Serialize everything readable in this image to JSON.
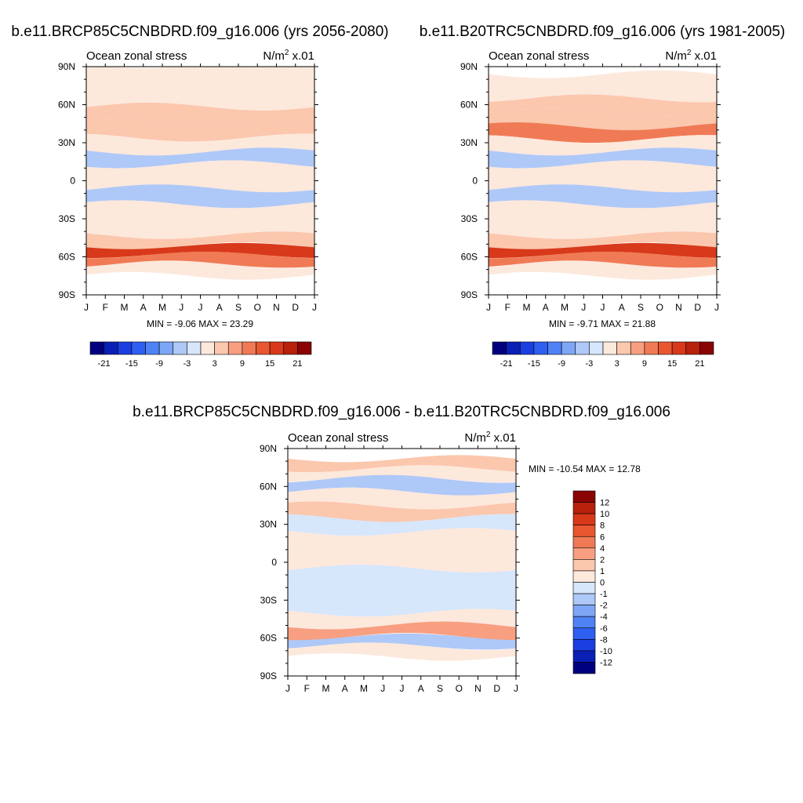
{
  "chart_data": [
    {
      "type": "heatmap",
      "title": "b.e11.BRCP85C5CNBDRD.f09_g16.006 (yrs 2056-2080)",
      "left_label": "Ocean zonal stress",
      "right_label_base": "N/m",
      "right_label_sup": "2",
      "right_label_scale": " x.01",
      "stats": "MIN =  -9.06 MAX =  23.29",
      "x_ticks": [
        "J",
        "F",
        "M",
        "A",
        "M",
        "J",
        "J",
        "A",
        "S",
        "O",
        "N",
        "D",
        "J"
      ],
      "y_ticks": [
        "90N",
        "60N",
        "30N",
        "0",
        "30S",
        "60S",
        "90S"
      ],
      "ylim": [
        -90,
        90
      ],
      "colorbar": {
        "orientation": "horizontal",
        "levels": [
          "-21",
          "-15",
          "-9",
          "-3",
          "3",
          "9",
          "15",
          "21"
        ],
        "colors": [
          "#00007f",
          "#0a1fb5",
          "#1a3ee0",
          "#2e5ff0",
          "#4f82f5",
          "#7ea6f6",
          "#aec8f8",
          "#d6e6fb",
          "#fde8dc",
          "#fbc7ad",
          "#f79f80",
          "#f07a55",
          "#e8572f",
          "#d8391a",
          "#b8210c",
          "#8a0404"
        ]
      },
      "bands": [
        {
          "lat": 88,
          "value": 0
        },
        {
          "lat": 78,
          "value": -2
        },
        {
          "lat": 65,
          "value": 1
        },
        {
          "lat": 52,
          "value": 4
        },
        {
          "lat": 40,
          "value": 8
        },
        {
          "lat": 28,
          "value": 2
        },
        {
          "lat": 18,
          "value": -7
        },
        {
          "lat": 8,
          "value": -3
        },
        {
          "lat": 0,
          "value": -1
        },
        {
          "lat": -12,
          "value": -8
        },
        {
          "lat": -25,
          "value": -3
        },
        {
          "lat": -38,
          "value": 1
        },
        {
          "lat": -48,
          "value": 7
        },
        {
          "lat": -55,
          "value": 18
        },
        {
          "lat": -62,
          "value": 12
        },
        {
          "lat": -70,
          "value": 0
        }
      ]
    },
    {
      "type": "heatmap",
      "title": "b.e11.B20TRC5CNBDRD.f09_g16.006 (yrs 1981-2005)",
      "left_label": "Ocean zonal stress",
      "right_label_base": "N/m",
      "right_label_sup": "2",
      "right_label_scale": " x.01",
      "stats": "MIN =  -9.71 MAX =  21.88",
      "x_ticks": [
        "J",
        "F",
        "M",
        "A",
        "M",
        "J",
        "J",
        "A",
        "S",
        "O",
        "N",
        "D",
        "J"
      ],
      "y_ticks": [
        "90N",
        "60N",
        "30N",
        "0",
        "30S",
        "60S",
        "90S"
      ],
      "ylim": [
        -90,
        90
      ],
      "colorbar": {
        "orientation": "horizontal",
        "levels": [
          "-21",
          "-15",
          "-9",
          "-3",
          "3",
          "9",
          "15",
          "21"
        ],
        "colors": [
          "#00007f",
          "#0a1fb5",
          "#1a3ee0",
          "#2e5ff0",
          "#4f82f5",
          "#7ea6f6",
          "#aec8f8",
          "#d6e6fb",
          "#fde8dc",
          "#fbc7ad",
          "#f79f80",
          "#f07a55",
          "#e8572f",
          "#d8391a",
          "#b8210c",
          "#8a0404"
        ]
      },
      "bands": [
        {
          "lat": 80,
          "value": -2
        },
        {
          "lat": 70,
          "value": -1
        },
        {
          "lat": 60,
          "value": 6
        },
        {
          "lat": 48,
          "value": 8
        },
        {
          "lat": 38,
          "value": 10
        },
        {
          "lat": 28,
          "value": 2
        },
        {
          "lat": 18,
          "value": -7
        },
        {
          "lat": 8,
          "value": -3
        },
        {
          "lat": 0,
          "value": 2
        },
        {
          "lat": -12,
          "value": -8
        },
        {
          "lat": -25,
          "value": -3
        },
        {
          "lat": -38,
          "value": 2
        },
        {
          "lat": -48,
          "value": 7
        },
        {
          "lat": -55,
          "value": 17
        },
        {
          "lat": -62,
          "value": 11
        },
        {
          "lat": -70,
          "value": 0
        }
      ]
    },
    {
      "type": "heatmap",
      "title": "b.e11.BRCP85C5CNBDRD.f09_g16.006 - b.e11.B20TRC5CNBDRD.f09_g16.006",
      "left_label": "Ocean zonal stress",
      "right_label_base": "N/m",
      "right_label_sup": "2",
      "right_label_scale": " x.01",
      "stats": "MIN = -10.54 MAX =  12.78",
      "x_ticks": [
        "J",
        "F",
        "M",
        "A",
        "M",
        "J",
        "J",
        "A",
        "S",
        "O",
        "N",
        "D",
        "J"
      ],
      "y_ticks": [
        "90N",
        "60N",
        "30N",
        "0",
        "30S",
        "60S",
        "90S"
      ],
      "ylim": [
        -90,
        90
      ],
      "colorbar": {
        "orientation": "vertical",
        "levels": [
          "12",
          "10",
          "8",
          "6",
          "4",
          "2",
          "1",
          "0",
          "-1",
          "-2",
          "-4",
          "-6",
          "-8",
          "-10",
          "-12"
        ],
        "colors": [
          "#8a0404",
          "#b8210c",
          "#d8391a",
          "#e8572f",
          "#f07a55",
          "#f79f80",
          "#fbc7ad",
          "#fde8dc",
          "#d6e6fb",
          "#aec8f8",
          "#7ea6f6",
          "#4f82f5",
          "#2e5ff0",
          "#1a3ee0",
          "#0a1fb5",
          "#00007f"
        ]
      },
      "bands": [
        {
          "lat": 78,
          "value": 1.5
        },
        {
          "lat": 70,
          "value": 0.5
        },
        {
          "lat": 62,
          "value": -2
        },
        {
          "lat": 50,
          "value": 0.5
        },
        {
          "lat": 40,
          "value": 1
        },
        {
          "lat": 30,
          "value": -0.5
        },
        {
          "lat": 18,
          "value": 0.5
        },
        {
          "lat": 8,
          "value": 0.5
        },
        {
          "lat": 0,
          "value": 0.5
        },
        {
          "lat": -10,
          "value": -0.5
        },
        {
          "lat": -22,
          "value": -0.5
        },
        {
          "lat": -35,
          "value": -1
        },
        {
          "lat": -45,
          "value": 0.5
        },
        {
          "lat": -55,
          "value": 2
        },
        {
          "lat": -63,
          "value": -2
        },
        {
          "lat": -70,
          "value": 0
        }
      ]
    }
  ]
}
